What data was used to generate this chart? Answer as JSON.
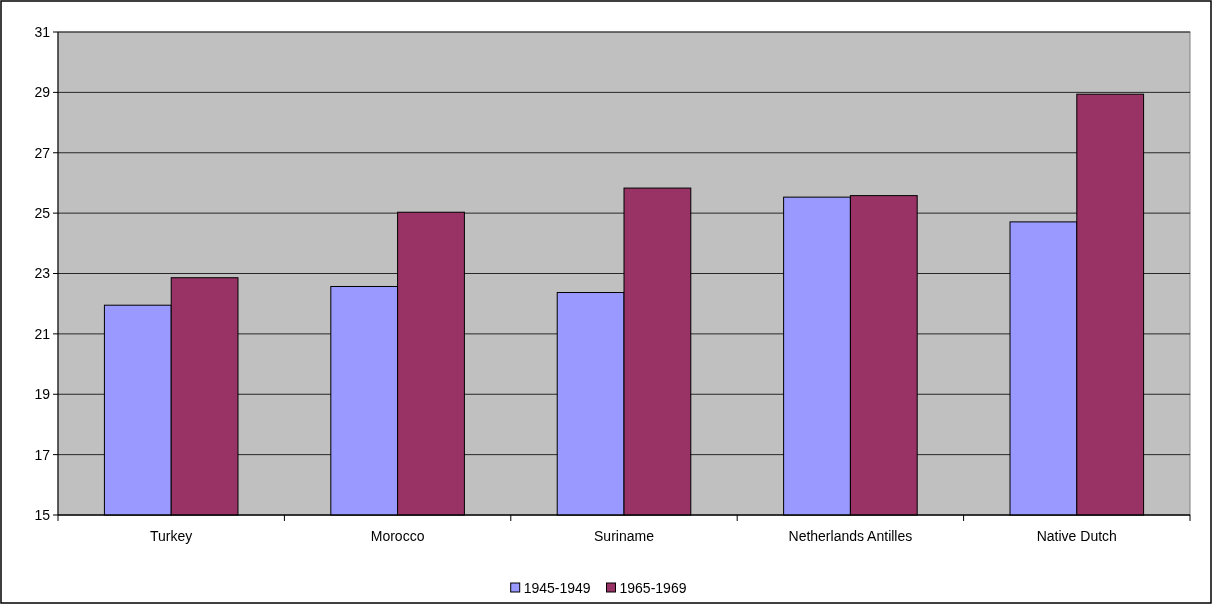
{
  "chart_data": {
    "type": "bar",
    "categories": [
      "Turkey",
      "Morocco",
      "Suriname",
      "Netherlands Antilles",
      "Native Dutch"
    ],
    "series": [
      {
        "name": "1945-1949",
        "color": "#9999ff",
        "values": [
          21.95,
          22.57,
          22.37,
          25.53,
          24.71
        ]
      },
      {
        "name": "1965-1969",
        "color": "#993366",
        "values": [
          22.86,
          25.03,
          25.83,
          25.58,
          28.94
        ]
      }
    ],
    "ylim": [
      15,
      31
    ],
    "yticks": [
      15,
      17,
      19,
      21,
      23,
      25,
      27,
      29,
      31
    ],
    "grid": "y",
    "legend": "bottom"
  }
}
